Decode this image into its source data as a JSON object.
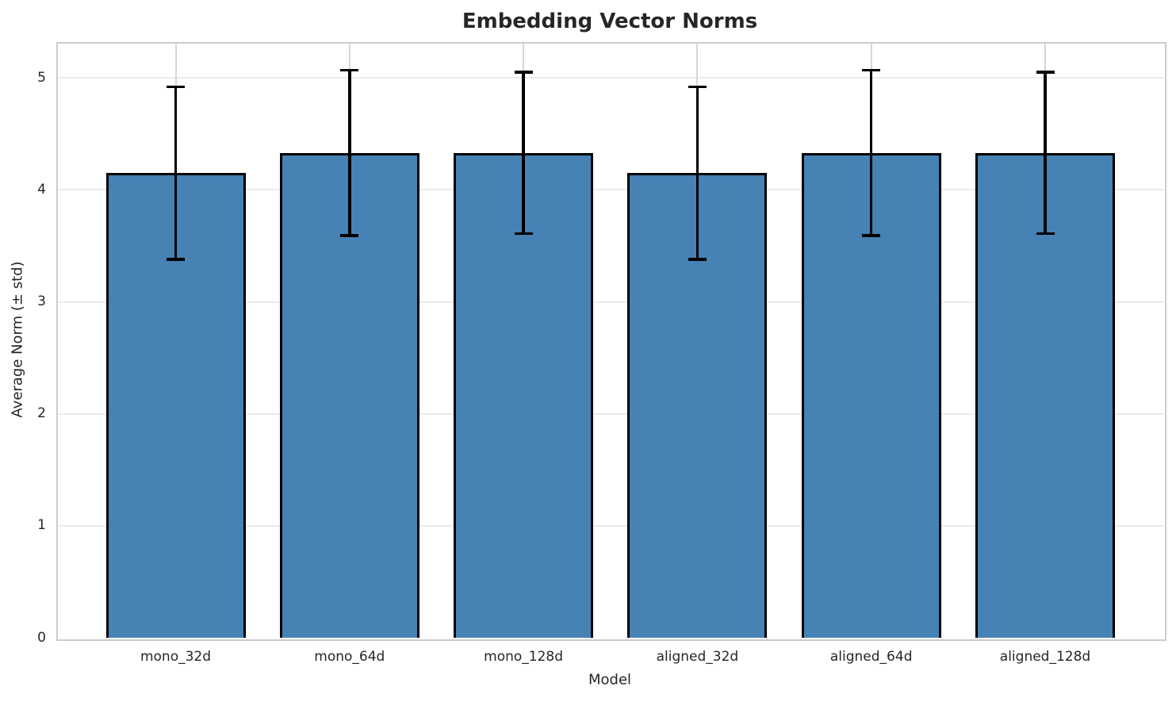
{
  "chart_data": {
    "type": "bar",
    "title": "Embedding Vector Norms",
    "xlabel": "Model",
    "ylabel": "Average Norm (± std)",
    "categories": [
      "mono_32d",
      "mono_64d",
      "mono_128d",
      "aligned_32d",
      "aligned_64d",
      "aligned_128d"
    ],
    "series": [
      {
        "name": "Average Norm",
        "values": [
          4.15,
          4.33,
          4.33,
          4.15,
          4.33,
          4.33
        ],
        "std": [
          0.77,
          0.74,
          0.72,
          0.77,
          0.74,
          0.72
        ]
      }
    ],
    "error_bars": true,
    "yticks": [
      0,
      1,
      2,
      3,
      4,
      5
    ],
    "ytick_labels": [
      "0",
      "1",
      "2",
      "3",
      "4",
      "5"
    ],
    "ylim": [
      0,
      5.32
    ],
    "grid": true,
    "legend": false,
    "bar_color": "#4682b4",
    "bar_edge_color": "#000000",
    "error_color": "#000000",
    "text_color": "#262626"
  }
}
